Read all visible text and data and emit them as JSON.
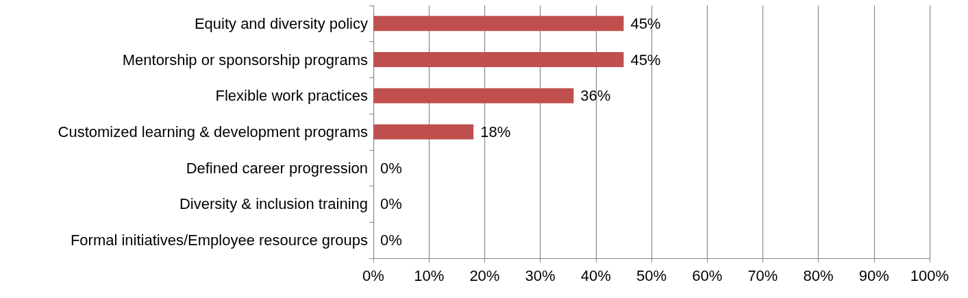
{
  "chart_data": {
    "type": "bar",
    "orientation": "horizontal",
    "categories": [
      "Equity and diversity policy",
      "Mentorship or sponsorship programs",
      "Flexible work practices",
      "Customized learning & development programs",
      "Defined career progression",
      "Diversity & inclusion training",
      "Formal initiatives/Employee resource groups"
    ],
    "values": [
      45,
      45,
      36,
      18,
      0,
      0,
      0
    ],
    "value_labels": [
      "45%",
      "45%",
      "36%",
      "18%",
      "0%",
      "0%",
      "0%"
    ],
    "color": "#c0504d",
    "xlim": [
      0,
      100
    ],
    "xticks": [
      {
        "value": 0,
        "label": "0%"
      },
      {
        "value": 10,
        "label": "10%"
      },
      {
        "value": 20,
        "label": "20%"
      },
      {
        "value": 30,
        "label": "30%"
      },
      {
        "value": 40,
        "label": "40%"
      },
      {
        "value": 50,
        "label": "50%"
      },
      {
        "value": 60,
        "label": "60%"
      },
      {
        "value": 70,
        "label": "70%"
      },
      {
        "value": 80,
        "label": "80%"
      },
      {
        "value": 90,
        "label": "90%"
      },
      {
        "value": 100,
        "label": "100%"
      }
    ],
    "grid": "x"
  }
}
